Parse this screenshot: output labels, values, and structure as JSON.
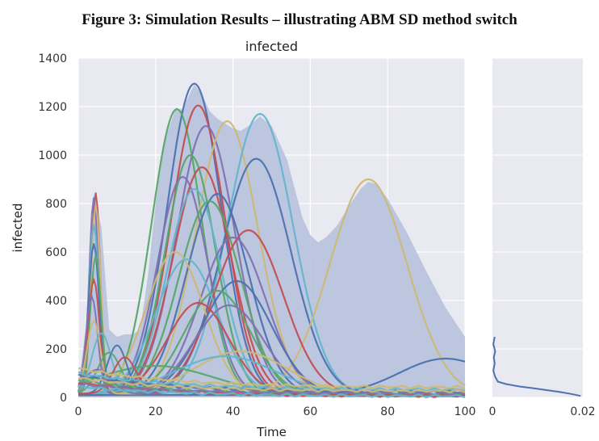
{
  "figure_title": "Figure 3: Simulation Results – illustrating ABM SD method switch",
  "chart_data": {
    "type": "line",
    "title": "infected",
    "xlabel": "Time",
    "ylabel": "infected",
    "xlim": [
      0,
      100
    ],
    "ylim": [
      0,
      1400
    ],
    "xticks": [
      0,
      20,
      40,
      60,
      80,
      100
    ],
    "yticks": [
      0,
      200,
      400,
      600,
      800,
      1000,
      1200,
      1400
    ],
    "grid": true,
    "background": "#e9e9f1",
    "band_color": "#b4c0da",
    "palette": [
      "#4c72b0",
      "#55a868",
      "#c44e52",
      "#8172b2",
      "#ccb974",
      "#64b5cd"
    ],
    "band_upper": [
      [
        0,
        40
      ],
      [
        2,
        300
      ],
      [
        4,
        840
      ],
      [
        6,
        700
      ],
      [
        8,
        280
      ],
      [
        10,
        250
      ],
      [
        12,
        260
      ],
      [
        14,
        260
      ],
      [
        16,
        280
      ],
      [
        18,
        500
      ],
      [
        20,
        800
      ],
      [
        22,
        1050
      ],
      [
        25,
        1185
      ],
      [
        27,
        1190
      ],
      [
        29,
        1260
      ],
      [
        30,
        1290
      ],
      [
        32,
        1250
      ],
      [
        34,
        1180
      ],
      [
        36,
        1150
      ],
      [
        38,
        1130
      ],
      [
        40,
        1110
      ],
      [
        42,
        1100
      ],
      [
        44,
        1120
      ],
      [
        47,
        1160
      ],
      [
        50,
        1120
      ],
      [
        52,
        1050
      ],
      [
        54,
        980
      ],
      [
        56,
        860
      ],
      [
        58,
        740
      ],
      [
        60,
        670
      ],
      [
        62,
        640
      ],
      [
        64,
        660
      ],
      [
        67,
        710
      ],
      [
        70,
        790
      ],
      [
        73,
        860
      ],
      [
        75,
        890
      ],
      [
        77,
        880
      ],
      [
        80,
        820
      ],
      [
        85,
        680
      ],
      [
        90,
        520
      ],
      [
        95,
        370
      ],
      [
        100,
        250
      ]
    ],
    "series": [
      {
        "peak_time": 30,
        "peak": 1285,
        "width": 7.0
      },
      {
        "peak_time": 25.5,
        "peak": 1180,
        "width": 6.5
      },
      {
        "peak_time": 31,
        "peak": 1195,
        "width": 7.0
      },
      {
        "peak_time": 33,
        "peak": 1110,
        "width": 7.5
      },
      {
        "peak_time": 38.5,
        "peak": 1130,
        "width": 8.0
      },
      {
        "peak_time": 47,
        "peak": 1160,
        "width": 8.5
      },
      {
        "peak_time": 46,
        "peak": 975,
        "width": 9.0
      },
      {
        "peak_time": 29,
        "peak": 990,
        "width": 6.5
      },
      {
        "peak_time": 32,
        "peak": 940,
        "width": 7.5
      },
      {
        "peak_time": 27,
        "peak": 900,
        "width": 6.5
      },
      {
        "peak_time": 75,
        "peak": 890,
        "width": 10.0
      },
      {
        "peak_time": 30,
        "peak": 850,
        "width": 7.0
      },
      {
        "peak_time": 36,
        "peak": 830,
        "width": 8.0
      },
      {
        "peak_time": 34,
        "peak": 800,
        "width": 8.0
      },
      {
        "peak_time": 44,
        "peak": 680,
        "width": 9.0
      },
      {
        "peak_time": 40,
        "peak": 650,
        "width": 8.5
      },
      {
        "peak_time": 25,
        "peak": 590,
        "width": 7.5
      },
      {
        "peak_time": 28,
        "peak": 560,
        "width": 8.0
      },
      {
        "peak_time": 41,
        "peak": 470,
        "width": 9.0
      },
      {
        "peak_time": 36,
        "peak": 430,
        "width": 8.5
      },
      {
        "peak_time": 31,
        "peak": 380,
        "width": 8.0
      },
      {
        "peak_time": 39,
        "peak": 370,
        "width": 9.0
      },
      {
        "peak_time": 42,
        "peak": 180,
        "width": 12.0
      },
      {
        "peak_time": 38,
        "peak": 160,
        "width": 13.0
      },
      {
        "peak_time": 95,
        "peak": 150,
        "width": 12.0
      },
      {
        "peak_time": 20,
        "peak": 120,
        "width": 15.0
      }
    ],
    "early_series": [
      {
        "peak_time": 4.5,
        "peak": 830,
        "width": 1.2
      },
      {
        "peak_time": 4.0,
        "peak": 810,
        "width": 1.2
      },
      {
        "peak_time": 4.5,
        "peak": 780,
        "width": 1.3
      },
      {
        "peak_time": 4.0,
        "peak": 700,
        "width": 1.3
      },
      {
        "peak_time": 4.0,
        "peak": 620,
        "width": 1.4
      },
      {
        "peak_time": 4.5,
        "peak": 570,
        "width": 1.4
      },
      {
        "peak_time": 4.0,
        "peak": 470,
        "width": 1.5
      },
      {
        "peak_time": 3.5,
        "peak": 400,
        "width": 1.5
      },
      {
        "peak_time": 4.0,
        "peak": 300,
        "width": 1.8
      },
      {
        "peak_time": 6.0,
        "peak": 250,
        "width": 2.5
      },
      {
        "peak_time": 10.0,
        "peak": 200,
        "width": 2.5
      },
      {
        "peak_time": 8.0,
        "peak": 170,
        "width": 3.0
      },
      {
        "peak_time": 12.0,
        "peak": 150,
        "width": 3.0
      },
      {
        "peak_time": 5.0,
        "peak": 100,
        "width": 3.5
      }
    ],
    "low_series": [
      {
        "start": 120,
        "end": 40
      },
      {
        "start": 100,
        "end": 30
      },
      {
        "start": 90,
        "end": 20
      },
      {
        "start": 70,
        "end": 10
      },
      {
        "start": 60,
        "end": 5
      },
      {
        "start": 55,
        "end": 15
      },
      {
        "start": 80,
        "end": 25
      },
      {
        "start": 45,
        "end": 5
      }
    ],
    "density_panel": {
      "xlim": [
        0,
        0.02
      ],
      "xticks": [
        "0",
        "0.02"
      ],
      "curve": [
        [
          0.0005,
          250
        ],
        [
          0.0002,
          220
        ],
        [
          0.0006,
          190
        ],
        [
          0.0003,
          165
        ],
        [
          0.0005,
          140
        ],
        [
          0.0002,
          110
        ],
        [
          0.0006,
          85
        ],
        [
          0.0012,
          65
        ],
        [
          0.003,
          55
        ],
        [
          0.006,
          45
        ],
        [
          0.009,
          38
        ],
        [
          0.012,
          30
        ],
        [
          0.015,
          22
        ],
        [
          0.0175,
          14
        ],
        [
          0.0195,
          6
        ]
      ]
    }
  }
}
